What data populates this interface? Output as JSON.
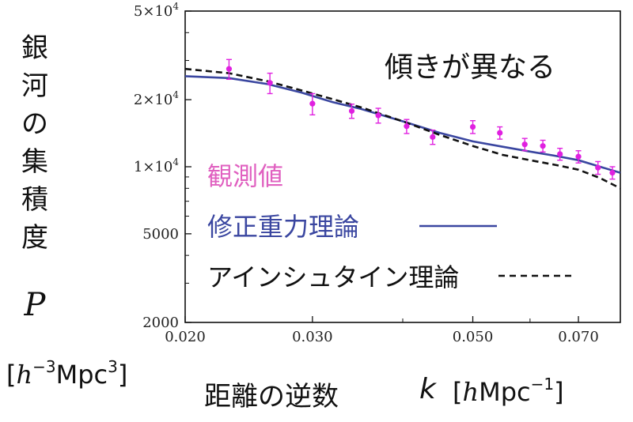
{
  "chart_data": {
    "type": "scatter",
    "title": "",
    "ylabel": "銀河の集積度",
    "ylabel_symbol": "P",
    "ylabel_unit": {
      "pre": "[",
      "sym": "h",
      "exp1": "−3",
      "mid": "Mpc",
      "exp2": "3",
      "post": "]"
    },
    "xlabel": "距離の逆数",
    "xlabel_symbol": "k",
    "xlabel_unit": {
      "pre": "[",
      "sym": "h",
      "mid": "Mpc",
      "exp": "−1",
      "post": "]"
    },
    "annotation": "傾きが異なる",
    "xscale": "log",
    "yscale": "log",
    "xlim": [
      0.02,
      0.08
    ],
    "ylim": [
      2000,
      50000
    ],
    "x_ticks": [
      0.02,
      0.03,
      0.05,
      0.07
    ],
    "x_tick_labels": [
      "0.020",
      "0.030",
      "0.050",
      "0.070"
    ],
    "y_ticks": [
      2000,
      5000,
      10000,
      20000,
      50000
    ],
    "y_tick_labels": [
      {
        "mant": "",
        "exp": "",
        "plain": "2000"
      },
      {
        "mant": "",
        "exp": "",
        "plain": "5000"
      },
      {
        "mant": "1×10",
        "exp": "4",
        "plain": ""
      },
      {
        "mant": "2×10",
        "exp": "4",
        "plain": ""
      },
      {
        "mant": "5×10",
        "exp": "4",
        "plain": ""
      }
    ],
    "grid": false,
    "series": [
      {
        "name": "観測値",
        "kind": "points-with-errorbars",
        "color": "#e020e0",
        "x": [
          0.023,
          0.0262,
          0.03,
          0.034,
          0.037,
          0.0405,
          0.044,
          0.05,
          0.0545,
          0.059,
          0.0625,
          0.066,
          0.07,
          0.0745,
          0.078
        ],
        "y": [
          27500,
          23800,
          19200,
          17800,
          17000,
          15200,
          13600,
          15100,
          14200,
          12600,
          12400,
          11400,
          11100,
          9900,
          9400
        ],
        "err": [
          2800,
          2500,
          2100,
          1300,
          1300,
          1100,
          1000,
          1000,
          900,
          800,
          750,
          700,
          700,
          650,
          600
        ]
      },
      {
        "name": "修正重力理論",
        "kind": "line",
        "color": "#3a46a0",
        "dash": "solid",
        "x": [
          0.02,
          0.023,
          0.026,
          0.029,
          0.032,
          0.035,
          0.04,
          0.045,
          0.05,
          0.055,
          0.06,
          0.065,
          0.07,
          0.075,
          0.08
        ],
        "y": [
          25500,
          25000,
          23500,
          21500,
          19500,
          18200,
          16000,
          14200,
          13000,
          12300,
          11700,
          11200,
          10700,
          10000,
          9400
        ]
      },
      {
        "name": "アインシュタイン理論",
        "kind": "line",
        "color": "#111111",
        "dash": "dashed",
        "x": [
          0.02,
          0.023,
          0.026,
          0.029,
          0.032,
          0.035,
          0.04,
          0.045,
          0.05,
          0.055,
          0.06,
          0.065,
          0.07,
          0.075,
          0.08
        ],
        "y": [
          27500,
          26300,
          24200,
          22000,
          20100,
          18500,
          16000,
          13900,
          12400,
          11300,
          10700,
          10200,
          9700,
          8900,
          8000
        ]
      }
    ],
    "legend_placement": "bottom-left"
  }
}
